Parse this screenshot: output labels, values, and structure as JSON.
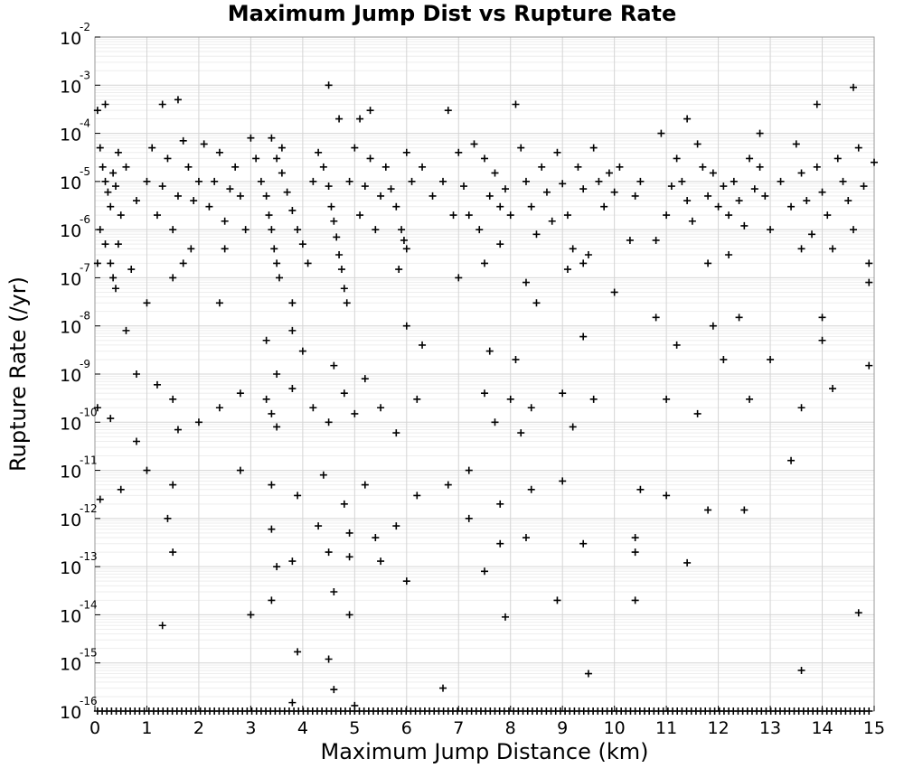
{
  "chart_data": {
    "type": "scatter",
    "title": "Maximum Jump Dist vs Rupture Rate",
    "xlabel": "Maximum Jump Distance (km)",
    "ylabel": "Rupture Rate (/yr)",
    "xlim": [
      0,
      15
    ],
    "ylim": [
      1e-16,
      0.01
    ],
    "y_scale": "log",
    "x_ticks": [
      "0",
      "1",
      "2",
      "3",
      "4",
      "5",
      "6",
      "7",
      "8",
      "9",
      "10",
      "11",
      "12",
      "13",
      "14",
      "15"
    ],
    "y_tick_mantissa": "10",
    "y_tick_exponents": [
      "-2",
      "-3",
      "-4",
      "-5",
      "-6",
      "-7",
      "-8",
      "-9",
      "-10",
      "-11",
      "-12",
      "-13",
      "-14",
      "-15",
      "-16"
    ],
    "grid": true,
    "marker": "+",
    "marker_color": "#000000",
    "series": [
      {
        "note": "representative sample of the dense point cloud; an additional continuous band of points lies along the lower bound (y = 1e-16) from x = 0 to 15",
        "points": [
          [
            0.05,
            0.0003
          ],
          [
            0.1,
            5e-05
          ],
          [
            0.15,
            2e-05
          ],
          [
            0.2,
            1e-05
          ],
          [
            0.25,
            6e-06
          ],
          [
            0.3,
            3e-06
          ],
          [
            0.35,
            1.5e-05
          ],
          [
            0.4,
            8e-06
          ],
          [
            0.45,
            4e-05
          ],
          [
            0.5,
            2e-06
          ],
          [
            0.1,
            1e-06
          ],
          [
            0.2,
            5e-07
          ],
          [
            0.3,
            2e-07
          ],
          [
            0.35,
            1e-07
          ],
          [
            0.4,
            6e-08
          ],
          [
            0.05,
            2e-07
          ],
          [
            0.45,
            5e-07
          ],
          [
            0.2,
            0.0004
          ],
          [
            0.6,
            2e-05
          ],
          [
            0.8,
            4e-06
          ],
          [
            1.0,
            1e-05
          ],
          [
            1.1,
            5e-05
          ],
          [
            1.2,
            2e-06
          ],
          [
            1.3,
            8e-06
          ],
          [
            1.4,
            3e-05
          ],
          [
            1.5,
            1e-06
          ],
          [
            1.6,
            5e-06
          ],
          [
            1.7,
            7e-05
          ],
          [
            1.8,
            2e-05
          ],
          [
            1.9,
            4e-06
          ],
          [
            2.0,
            1e-05
          ],
          [
            2.1,
            6e-05
          ],
          [
            2.2,
            3e-06
          ],
          [
            2.3,
            1e-05
          ],
          [
            2.4,
            4e-05
          ],
          [
            2.5,
            1.5e-06
          ],
          [
            2.6,
            7e-06
          ],
          [
            2.7,
            2e-05
          ],
          [
            2.8,
            5e-06
          ],
          [
            2.9,
            1e-06
          ],
          [
            1.6,
            0.0005
          ],
          [
            1.3,
            0.0004
          ],
          [
            0.7,
            1.5e-07
          ],
          [
            1.0,
            3e-08
          ],
          [
            0.6,
            8e-09
          ],
          [
            1.5,
            1e-07
          ],
          [
            1.7,
            2e-07
          ],
          [
            1.85,
            4e-07
          ],
          [
            2.4,
            3e-08
          ],
          [
            2.5,
            4e-07
          ],
          [
            3.0,
            8e-05
          ],
          [
            3.1,
            3e-05
          ],
          [
            3.2,
            1e-05
          ],
          [
            3.3,
            5e-06
          ],
          [
            3.35,
            2e-06
          ],
          [
            3.4,
            1e-06
          ],
          [
            3.45,
            4e-07
          ],
          [
            3.5,
            2e-07
          ],
          [
            3.55,
            1e-07
          ],
          [
            3.6,
            5e-05
          ],
          [
            3.4,
            8e-05
          ],
          [
            3.5,
            3e-05
          ],
          [
            3.6,
            1.5e-05
          ],
          [
            3.7,
            6e-06
          ],
          [
            3.8,
            2.5e-06
          ],
          [
            3.9,
            1e-06
          ],
          [
            4.0,
            5e-07
          ],
          [
            4.1,
            2e-07
          ],
          [
            4.2,
            1e-05
          ],
          [
            4.3,
            4e-05
          ],
          [
            4.4,
            2e-05
          ],
          [
            4.5,
            8e-06
          ],
          [
            4.55,
            3e-06
          ],
          [
            4.6,
            1.5e-06
          ],
          [
            4.65,
            7e-07
          ],
          [
            4.7,
            3e-07
          ],
          [
            4.75,
            1.5e-07
          ],
          [
            4.8,
            6e-08
          ],
          [
            4.85,
            3e-08
          ],
          [
            4.5,
            0.001
          ],
          [
            4.9,
            1e-05
          ],
          [
            5.0,
            5e-05
          ],
          [
            5.1,
            2e-06
          ],
          [
            5.2,
            8e-06
          ],
          [
            5.3,
            3e-05
          ],
          [
            5.4,
            1e-06
          ],
          [
            5.5,
            5e-06
          ],
          [
            5.6,
            2e-05
          ],
          [
            5.7,
            7e-06
          ],
          [
            5.8,
            3e-06
          ],
          [
            5.9,
            1e-06
          ],
          [
            6.0,
            4e-07
          ],
          [
            6.1,
            1e-05
          ],
          [
            6.0,
            4e-05
          ],
          [
            5.85,
            1.5e-07
          ],
          [
            5.95,
            6e-07
          ],
          [
            5.3,
            0.0003
          ],
          [
            4.7,
            0.0002
          ],
          [
            5.1,
            0.0002
          ],
          [
            3.8,
            3e-08
          ],
          [
            6.3,
            2e-05
          ],
          [
            6.5,
            5e-06
          ],
          [
            6.7,
            1e-05
          ],
          [
            6.8,
            0.0003
          ],
          [
            6.9,
            2e-06
          ],
          [
            7.0,
            4e-05
          ],
          [
            7.1,
            8e-06
          ],
          [
            7.2,
            2e-06
          ],
          [
            7.3,
            6e-05
          ],
          [
            7.4,
            1e-06
          ],
          [
            7.5,
            3e-05
          ],
          [
            7.6,
            5e-06
          ],
          [
            7.7,
            1.5e-05
          ],
          [
            7.8,
            3e-06
          ],
          [
            7.9,
            7e-06
          ],
          [
            8.0,
            2e-06
          ],
          [
            8.1,
            0.0004
          ],
          [
            8.2,
            5e-05
          ],
          [
            8.3,
            1e-05
          ],
          [
            8.4,
            3e-06
          ],
          [
            8.5,
            8e-07
          ],
          [
            8.6,
            2e-05
          ],
          [
            8.7,
            6e-06
          ],
          [
            8.8,
            1.5e-06
          ],
          [
            8.9,
            4e-05
          ],
          [
            9.0,
            9e-06
          ],
          [
            9.1,
            2e-06
          ],
          [
            9.2,
            4e-07
          ],
          [
            9.3,
            2e-05
          ],
          [
            9.4,
            7e-06
          ],
          [
            9.5,
            3e-07
          ],
          [
            9.6,
            5e-05
          ],
          [
            9.7,
            1e-05
          ],
          [
            9.8,
            3e-06
          ],
          [
            9.9,
            1.5e-05
          ],
          [
            10.0,
            6e-06
          ],
          [
            10.1,
            2e-05
          ],
          [
            10.3,
            6e-07
          ],
          [
            10.4,
            5e-06
          ],
          [
            10.5,
            1e-05
          ],
          [
            7.0,
            1e-07
          ],
          [
            7.5,
            2e-07
          ],
          [
            7.8,
            5e-07
          ],
          [
            8.3,
            8e-08
          ],
          [
            8.5,
            3e-08
          ],
          [
            9.1,
            1.5e-07
          ],
          [
            9.4,
            2e-07
          ],
          [
            10.0,
            5e-08
          ],
          [
            10.8,
            6e-07
          ],
          [
            11.0,
            2e-06
          ],
          [
            11.1,
            8e-06
          ],
          [
            11.2,
            3e-05
          ],
          [
            11.3,
            1e-05
          ],
          [
            11.4,
            4e-06
          ],
          [
            11.5,
            1.5e-06
          ],
          [
            11.6,
            6e-05
          ],
          [
            11.7,
            2e-05
          ],
          [
            11.8,
            5e-06
          ],
          [
            11.9,
            1.5e-05
          ],
          [
            12.0,
            3e-06
          ],
          [
            12.1,
            8e-06
          ],
          [
            12.2,
            2e-06
          ],
          [
            12.3,
            1e-05
          ],
          [
            12.4,
            4e-06
          ],
          [
            12.5,
            1.2e-06
          ],
          [
            12.6,
            3e-05
          ],
          [
            12.7,
            7e-06
          ],
          [
            12.8,
            2e-05
          ],
          [
            12.9,
            5e-06
          ],
          [
            13.0,
            1e-06
          ],
          [
            13.2,
            1e-05
          ],
          [
            13.4,
            3e-06
          ],
          [
            13.5,
            6e-05
          ],
          [
            13.6,
            1.5e-05
          ],
          [
            13.7,
            4e-06
          ],
          [
            13.8,
            8e-07
          ],
          [
            13.9,
            2e-05
          ],
          [
            14.0,
            6e-06
          ],
          [
            14.1,
            2e-06
          ],
          [
            14.2,
            4e-07
          ],
          [
            14.3,
            3e-05
          ],
          [
            14.4,
            1e-05
          ],
          [
            14.5,
            4e-06
          ],
          [
            14.6,
            1e-06
          ],
          [
            14.7,
            5e-05
          ],
          [
            14.8,
            8e-06
          ],
          [
            14.9,
            2e-07
          ],
          [
            15.0,
            2.5e-05
          ],
          [
            14.6,
            0.0009
          ],
          [
            13.9,
            0.0004
          ],
          [
            12.8,
            0.0001
          ],
          [
            11.4,
            0.0002
          ],
          [
            10.9,
            0.0001
          ],
          [
            14.9,
            8e-08
          ],
          [
            13.6,
            4e-07
          ],
          [
            12.2,
            3e-07
          ],
          [
            11.8,
            2e-07
          ],
          [
            11.9,
            1e-08
          ],
          [
            12.4,
            1.5e-08
          ],
          [
            14.0,
            1.5e-08
          ],
          [
            0.8,
            1e-09
          ],
          [
            1.2,
            6e-10
          ],
          [
            1.5,
            3e-10
          ],
          [
            2.0,
            1e-10
          ],
          [
            2.4,
            2e-10
          ],
          [
            2.8,
            4e-10
          ],
          [
            3.3,
            3e-10
          ],
          [
            3.4,
            1.5e-10
          ],
          [
            3.5,
            8e-11
          ],
          [
            3.8,
            5e-10
          ],
          [
            4.2,
            2e-10
          ],
          [
            4.5,
            1e-10
          ],
          [
            4.8,
            4e-10
          ],
          [
            5.0,
            1.5e-10
          ],
          [
            5.5,
            2e-10
          ],
          [
            5.8,
            6e-11
          ],
          [
            6.2,
            3e-10
          ],
          [
            7.5,
            4e-10
          ],
          [
            7.7,
            1e-10
          ],
          [
            8.0,
            3e-10
          ],
          [
            8.2,
            6e-11
          ],
          [
            8.4,
            2e-10
          ],
          [
            9.0,
            4e-10
          ],
          [
            9.2,
            8e-11
          ],
          [
            9.6,
            3e-10
          ],
          [
            11.0,
            3e-10
          ],
          [
            11.6,
            1.5e-10
          ],
          [
            12.6,
            3e-10
          ],
          [
            13.6,
            2e-10
          ],
          [
            14.2,
            5e-10
          ],
          [
            0.3,
            1.2e-10
          ],
          [
            0.8,
            4e-11
          ],
          [
            1.6,
            7e-11
          ],
          [
            3.3,
            5e-09
          ],
          [
            3.5,
            1e-09
          ],
          [
            4.0,
            3e-09
          ],
          [
            4.6,
            1.5e-09
          ],
          [
            5.2,
            8e-10
          ],
          [
            6.0,
            1e-08
          ],
          [
            7.6,
            3e-09
          ],
          [
            8.1,
            2e-09
          ],
          [
            9.4,
            6e-09
          ],
          [
            10.8,
            1.5e-08
          ],
          [
            11.2,
            4e-09
          ],
          [
            12.1,
            2e-09
          ],
          [
            13.0,
            2e-09
          ],
          [
            14.0,
            5e-09
          ],
          [
            14.9,
            1.5e-09
          ],
          [
            6.3,
            4e-09
          ],
          [
            3.8,
            8e-09
          ],
          [
            0.5,
            4e-12
          ],
          [
            1.0,
            1e-11
          ],
          [
            1.5,
            5e-12
          ],
          [
            2.8,
            1e-11
          ],
          [
            3.4,
            5e-12
          ],
          [
            3.9,
            3e-12
          ],
          [
            4.4,
            8e-12
          ],
          [
            4.8,
            2e-12
          ],
          [
            5.2,
            5e-12
          ],
          [
            6.2,
            3e-12
          ],
          [
            6.8,
            5e-12
          ],
          [
            7.2,
            1e-11
          ],
          [
            7.8,
            2e-12
          ],
          [
            8.4,
            4e-12
          ],
          [
            9.0,
            6e-12
          ],
          [
            10.5,
            4e-12
          ],
          [
            11.0,
            3e-12
          ],
          [
            11.8,
            1.5e-12
          ],
          [
            12.5,
            1.5e-12
          ],
          [
            13.4,
            1.6e-11
          ],
          [
            1.4,
            1e-12
          ],
          [
            3.4,
            6e-13
          ],
          [
            4.3,
            7e-13
          ],
          [
            4.9,
            5e-13
          ],
          [
            5.4,
            4e-13
          ],
          [
            5.8,
            7e-13
          ],
          [
            7.2,
            1e-12
          ],
          [
            7.8,
            3e-13
          ],
          [
            8.3,
            4e-13
          ],
          [
            10.4,
            4e-13
          ],
          [
            1.5,
            2e-13
          ],
          [
            3.5,
            1e-13
          ],
          [
            3.8,
            1.3e-13
          ],
          [
            4.5,
            2e-13
          ],
          [
            4.9,
            1.6e-13
          ],
          [
            5.5,
            1.3e-13
          ],
          [
            7.5,
            8e-14
          ],
          [
            9.4,
            3e-13
          ],
          [
            10.4,
            2e-13
          ],
          [
            11.4,
            1.2e-13
          ],
          [
            1.3,
            6e-15
          ],
          [
            3.0,
            1e-14
          ],
          [
            3.4,
            2e-14
          ],
          [
            4.6,
            3e-14
          ],
          [
            4.9,
            1e-14
          ],
          [
            6.0,
            5e-14
          ],
          [
            7.9,
            9e-15
          ],
          [
            8.9,
            2e-14
          ],
          [
            10.4,
            2e-14
          ],
          [
            14.7,
            1.1e-14
          ],
          [
            3.9,
            1.7e-15
          ],
          [
            4.5,
            1.2e-15
          ],
          [
            9.5,
            6e-16
          ],
          [
            13.6,
            7e-16
          ],
          [
            4.6,
            2.8e-16
          ],
          [
            6.7,
            3e-16
          ],
          [
            3.8,
            1.5e-16
          ],
          [
            5.0,
            1.3e-16
          ],
          [
            0.1,
            2.5e-12
          ],
          [
            0.05,
            2e-10
          ]
        ]
      }
    ]
  }
}
